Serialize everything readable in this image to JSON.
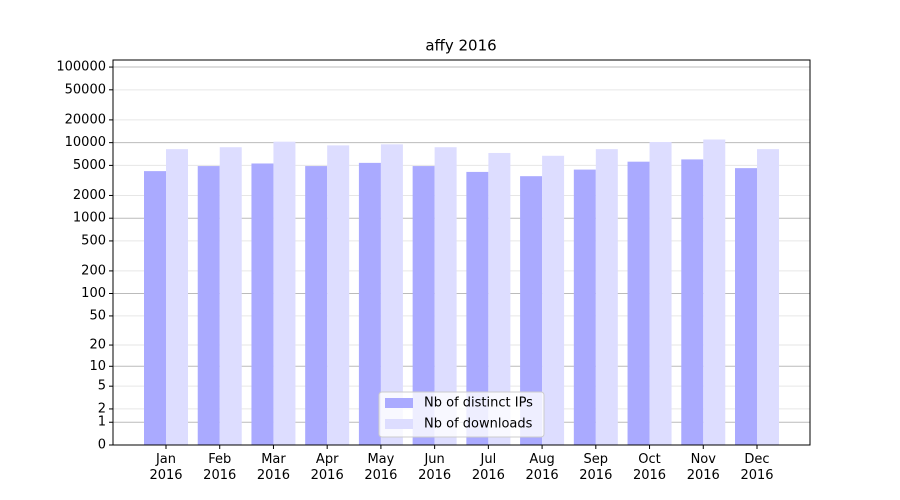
{
  "chart_data": {
    "type": "bar",
    "title": "affy 2016",
    "categories": [
      "Jan\n2016",
      "Feb\n2016",
      "Mar\n2016",
      "Apr\n2016",
      "May\n2016",
      "Jun\n2016",
      "Jul\n2016",
      "Aug\n2016",
      "Sep\n2016",
      "Oct\n2016",
      "Nov\n2016",
      "Dec\n2016"
    ],
    "series": [
      {
        "name": "Nb of distinct IPs",
        "color": "#aaaaff",
        "values": [
          4200,
          4900,
          5300,
          4900,
          5400,
          4900,
          4100,
          3600,
          4400,
          5600,
          6000,
          4600
        ]
      },
      {
        "name": "Nb of downloads",
        "color": "#ddddff",
        "values": [
          8200,
          8700,
          10300,
          9200,
          9500,
          8700,
          7300,
          6700,
          8200,
          10200,
          11000,
          8200
        ]
      }
    ],
    "yscale": "log1p",
    "ylim": [
      0,
      124000
    ],
    "yticks": [
      0,
      1,
      2,
      5,
      10,
      20,
      50,
      100,
      200,
      500,
      1000,
      2000,
      5000,
      10000,
      20000,
      50000,
      100000
    ],
    "grid": true,
    "legend": "lower center"
  }
}
